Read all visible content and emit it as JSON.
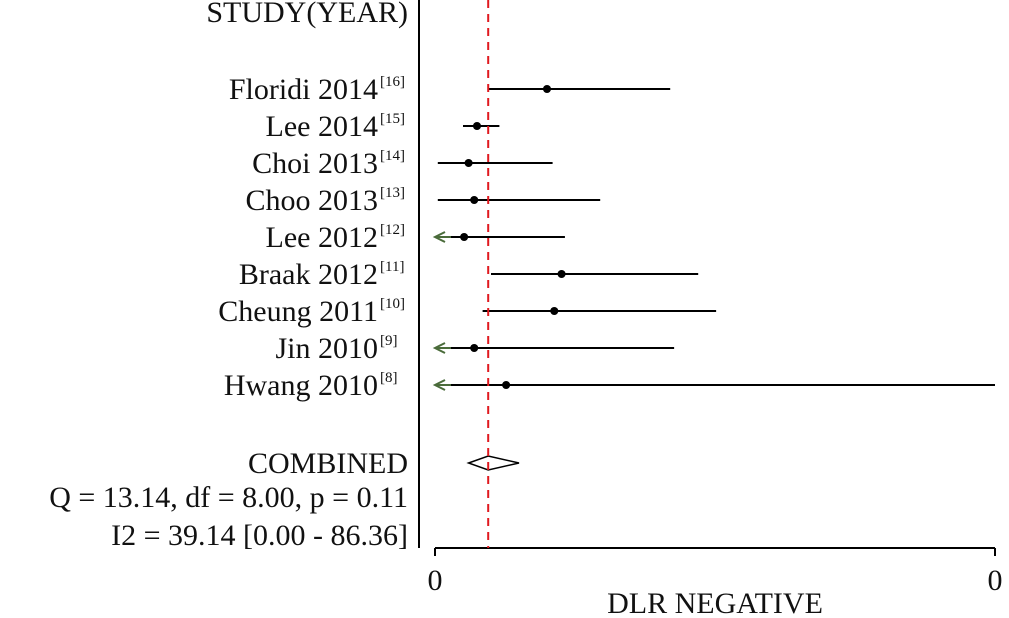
{
  "chart_data": {
    "type": "forest",
    "header": "STUDY(YEAR)",
    "xlabel": "DLR NEGATIVE",
    "xticks": [
      "0",
      "0"
    ],
    "xlim": [
      0.0,
      1.0
    ],
    "reference_value": 0.095,
    "studies": [
      {
        "name": "Floridi 2014",
        "ref": "[16]",
        "est": 0.2,
        "lo": 0.095,
        "hi": 0.42,
        "truncated_lo": false
      },
      {
        "name": "Lee 2014",
        "ref": "[15]",
        "est": 0.075,
        "lo": 0.05,
        "hi": 0.115,
        "truncated_lo": false
      },
      {
        "name": "Choi 2013",
        "ref": "[14]",
        "est": 0.06,
        "lo": 0.005,
        "hi": 0.21,
        "truncated_lo": false
      },
      {
        "name": "Choo 2013",
        "ref": "[13]",
        "est": 0.07,
        "lo": 0.005,
        "hi": 0.295,
        "truncated_lo": false
      },
      {
        "name": "Lee 2012",
        "ref": "[12]",
        "est": 0.052,
        "lo": 0.0,
        "hi": 0.232,
        "truncated_lo": true
      },
      {
        "name": "Braak 2012",
        "ref": "[11]",
        "est": 0.226,
        "lo": 0.1,
        "hi": 0.47,
        "truncated_lo": false
      },
      {
        "name": "Cheung 2011",
        "ref": "[10]",
        "est": 0.213,
        "lo": 0.085,
        "hi": 0.502,
        "truncated_lo": false
      },
      {
        "name": "Jin 2010",
        "ref": "[9]",
        "est": 0.07,
        "lo": 0.0,
        "hi": 0.427,
        "truncated_lo": true
      },
      {
        "name": "Hwang 2010",
        "ref": "[8]",
        "est": 0.127,
        "lo": 0.0,
        "hi": 1.0,
        "truncated_lo": true
      }
    ],
    "combined": {
      "label": "COMBINED",
      "est": 0.095,
      "lo": 0.06,
      "hi": 0.15
    },
    "stats": [
      "Q = 13.14, df = 8.00, p =  0.11",
      "I2 = 39.14 [0.00 - 86.36]"
    ],
    "colors": {
      "line": "#000000",
      "arrow": "#4a6b3a",
      "reference": "#e0191f",
      "text": "#111111"
    }
  }
}
